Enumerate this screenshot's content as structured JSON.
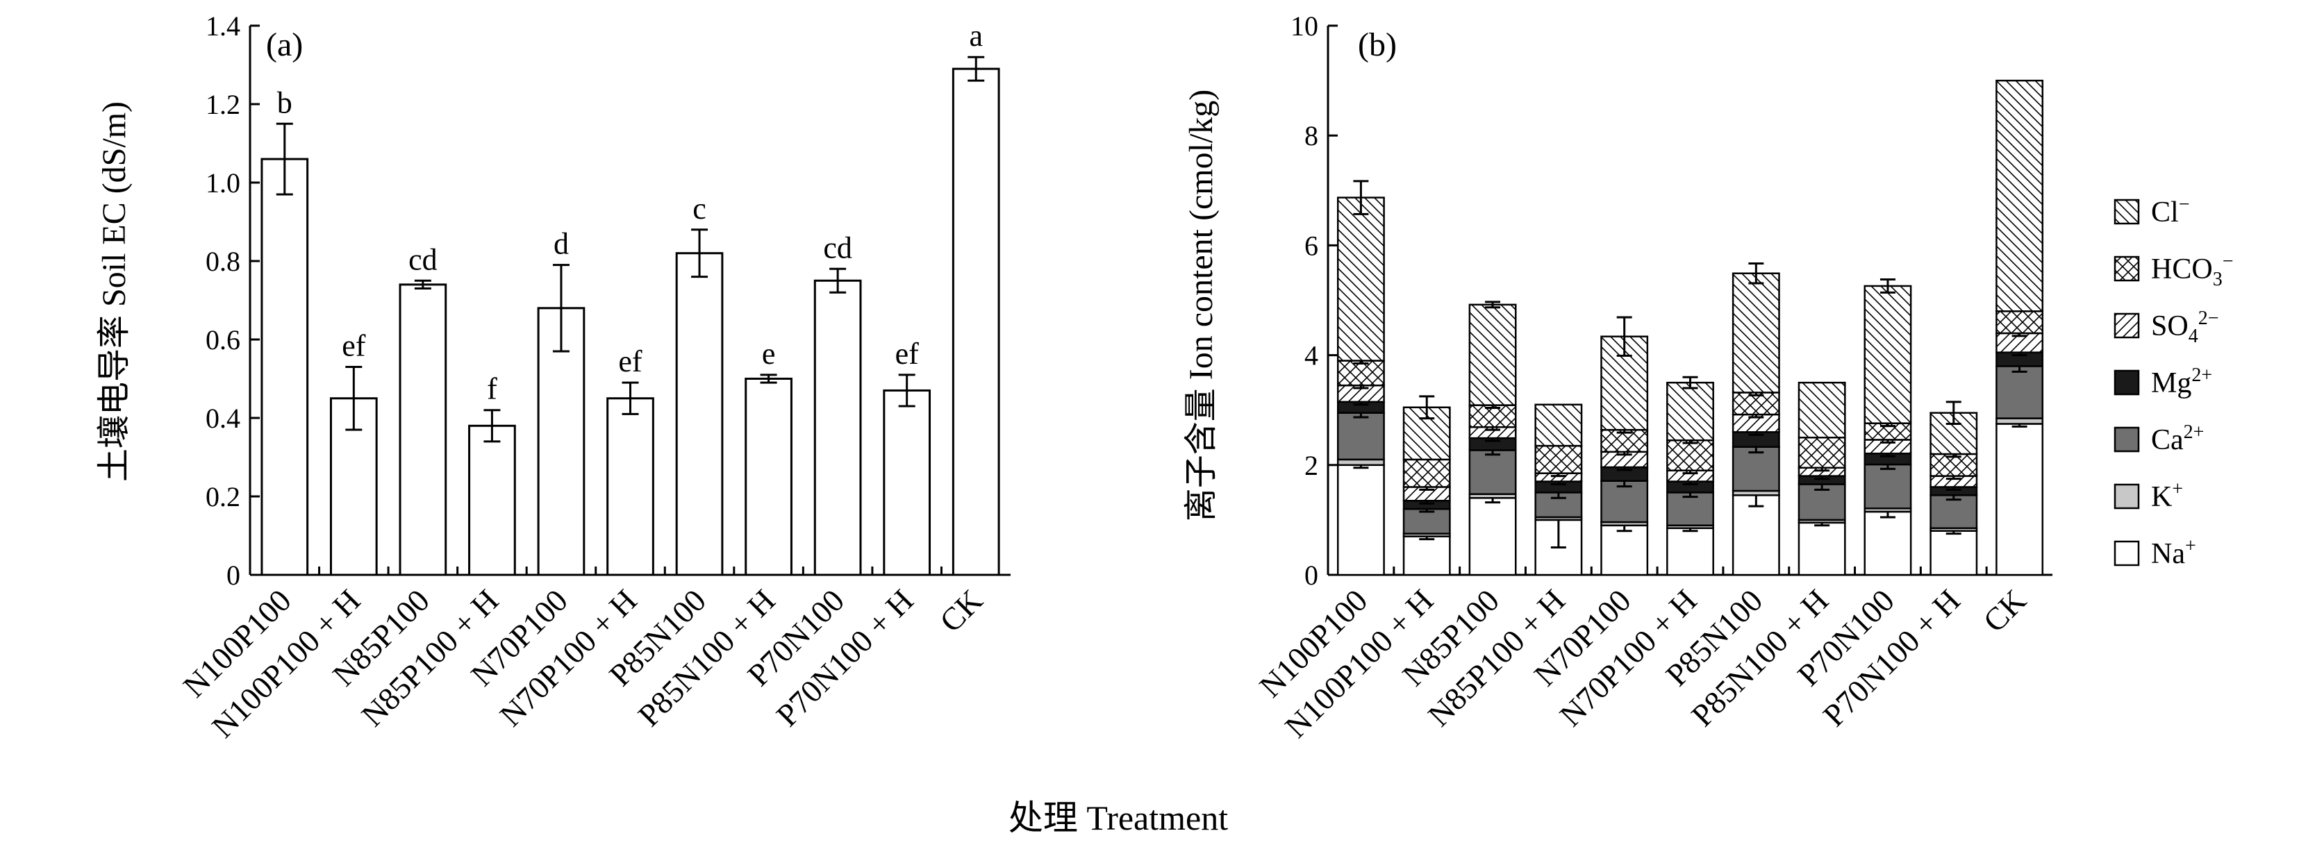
{
  "shared_xlabel": "处理 Treatment",
  "chart_data": [
    {
      "type": "bar",
      "panel_label": "(a)",
      "ylabel": "土壤电导率 Soil EC (dS/m)",
      "ylim": [
        0,
        1.4
      ],
      "yticks": [
        "0",
        "0.2",
        "0.4",
        "0.6",
        "0.8",
        "1.0",
        "1.2",
        "1.4"
      ],
      "categories": [
        "N100P100",
        "N100P100 + H",
        "N85P100",
        "N85P100 + H",
        "N70P100",
        "N70P100 + H",
        "P85N100",
        "P85N100 + H",
        "P70N100",
        "P70N100 + H",
        "CK"
      ],
      "values": [
        1.06,
        0.45,
        0.74,
        0.38,
        0.68,
        0.45,
        0.82,
        0.5,
        0.75,
        0.47,
        1.29
      ],
      "errors": [
        0.09,
        0.08,
        0.01,
        0.04,
        0.11,
        0.04,
        0.06,
        0.01,
        0.03,
        0.04,
        0.03
      ],
      "letters": [
        "b",
        "ef",
        "cd",
        "f",
        "d",
        "ef",
        "c",
        "e",
        "cd",
        "ef",
        "a"
      ]
    },
    {
      "type": "bar",
      "stacked": true,
      "panel_label": "(b)",
      "ylabel": "离子含量 Ion content (cmol/kg)",
      "ylim": [
        0,
        10
      ],
      "yticks": [
        "0",
        "2",
        "4",
        "6",
        "8",
        "10"
      ],
      "categories": [
        "N100P100",
        "N100P100 + H",
        "N85P100",
        "N85P100 + H",
        "N70P100",
        "N70P100 + H",
        "P85N100",
        "P85N100 + H",
        "P70N100",
        "P70N100 + H",
        "CK"
      ],
      "legend_position": "right",
      "series": [
        {
          "name": "Na+",
          "base": "Na",
          "sup": "+",
          "sub": "",
          "pattern": "white",
          "values": [
            2.0,
            0.7,
            1.4,
            1.0,
            0.9,
            0.85,
            1.45,
            0.95,
            1.15,
            0.8,
            2.75
          ],
          "errors": [
            0.05,
            0.05,
            0.08,
            0.5,
            0.1,
            0.05,
            0.2,
            0.05,
            0.1,
            0.05,
            0.05
          ]
        },
        {
          "name": "K+",
          "base": "K",
          "sup": "+",
          "sub": "",
          "pattern": "lightgray",
          "values": [
            0.1,
            0.05,
            0.07,
            0.05,
            0.06,
            0.05,
            0.08,
            0.05,
            0.06,
            0.05,
            0.1
          ],
          "errors": [
            0,
            0,
            0,
            0,
            0,
            0,
            0,
            0,
            0,
            0,
            0
          ]
        },
        {
          "name": "Ca2+",
          "base": "Ca",
          "sup": "2+",
          "sub": "",
          "pattern": "darkgray",
          "values": [
            0.85,
            0.45,
            0.8,
            0.45,
            0.75,
            0.6,
            0.8,
            0.65,
            0.8,
            0.6,
            0.95
          ],
          "errors": [
            0.08,
            0.05,
            0.08,
            0.1,
            0.1,
            0.08,
            0.1,
            0.1,
            0.08,
            0.08,
            0.1
          ]
        },
        {
          "name": "Mg2+",
          "base": "Mg",
          "sup": "2+",
          "sub": "",
          "pattern": "black",
          "values": [
            0.2,
            0.15,
            0.22,
            0.2,
            0.25,
            0.2,
            0.27,
            0.15,
            0.2,
            0.15,
            0.25
          ],
          "errors": [
            0.05,
            0.05,
            0.05,
            0.05,
            0.05,
            0.05,
            0.05,
            0.05,
            0.05,
            0.05,
            0.05
          ]
        },
        {
          "name": "SO42-",
          "base": "SO",
          "sup": "2−",
          "sub": "4",
          "pattern": "diag-fwd",
          "values": [
            0.3,
            0.25,
            0.2,
            0.15,
            0.28,
            0.2,
            0.32,
            0.15,
            0.25,
            0.2,
            0.35
          ],
          "errors": [
            0.05,
            0.05,
            0.05,
            0.05,
            0.05,
            0.05,
            0.05,
            0.05,
            0.05,
            0.05,
            0.05
          ]
        },
        {
          "name": "HCO3-",
          "base": "HCO",
          "sup": "−",
          "sub": "3",
          "pattern": "crosshatch",
          "values": [
            0.45,
            0.5,
            0.4,
            0.5,
            0.4,
            0.55,
            0.4,
            0.55,
            0.3,
            0.4,
            0.4
          ],
          "errors": [
            0.05,
            0,
            0.05,
            0,
            0.05,
            0.05,
            0.05,
            0,
            0.05,
            0.05,
            0
          ]
        },
        {
          "name": "Cl-",
          "base": "Cl",
          "sup": "−",
          "sub": "",
          "pattern": "diag-back",
          "values": [
            2.97,
            0.95,
            1.83,
            0.75,
            1.7,
            1.05,
            2.17,
            1.0,
            2.5,
            0.75,
            4.2
          ],
          "errors": [
            0.3,
            0.2,
            0.05,
            0,
            0.35,
            0.1,
            0.18,
            0,
            0.12,
            0.2,
            0
          ]
        }
      ]
    }
  ]
}
